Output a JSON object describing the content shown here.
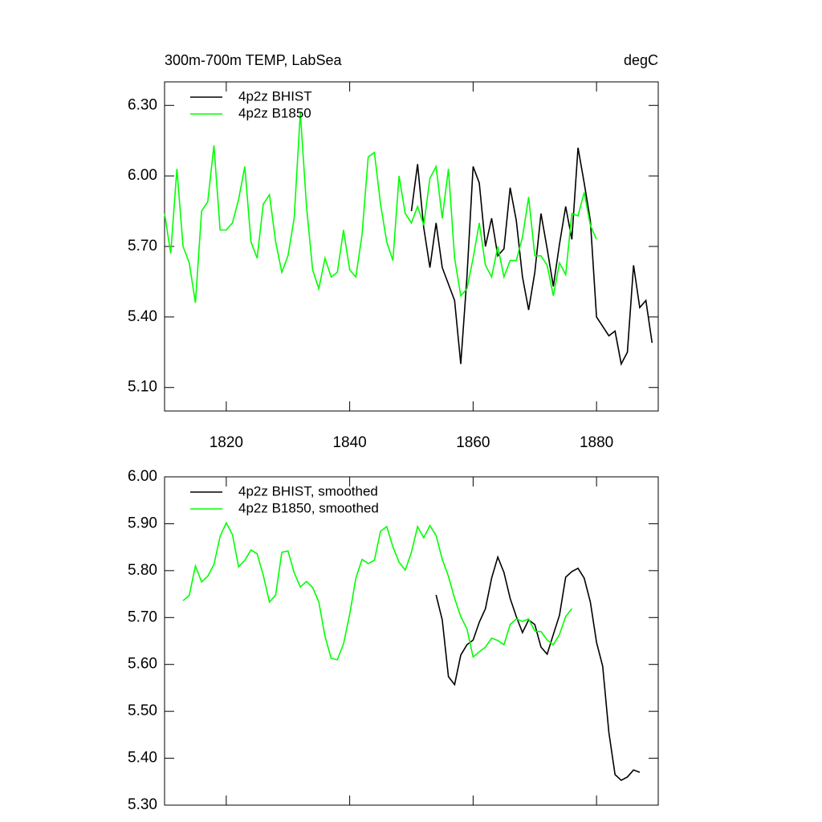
{
  "chart_data": [
    {
      "type": "line",
      "title": "300m-700m TEMP, LabSea",
      "subtitle": "degC",
      "xlim": [
        1810,
        1890
      ],
      "xticks": [
        1820,
        1840,
        1860,
        1880
      ],
      "ylim": [
        5.0,
        6.4
      ],
      "yticks": [
        {
          "value": 5.1,
          "label": "5.10"
        },
        {
          "value": 5.4,
          "label": "5.40"
        },
        {
          "value": 5.7,
          "label": "5.70"
        },
        {
          "value": 6.0,
          "label": "6.00"
        },
        {
          "value": 6.3,
          "label": "6.30"
        }
      ],
      "series": [
        {
          "name": "4p2z BHIST",
          "color": "#000000",
          "x": [
            1850,
            1851,
            1852,
            1853,
            1854,
            1855,
            1856,
            1857,
            1858,
            1859,
            1860,
            1861,
            1862,
            1863,
            1864,
            1865,
            1866,
            1867,
            1868,
            1869,
            1870,
            1871,
            1872,
            1873,
            1874,
            1875,
            1876,
            1877,
            1878,
            1879,
            1880,
            1881,
            1882,
            1883,
            1884,
            1885,
            1886,
            1887,
            1888,
            1889
          ],
          "values": [
            5.85,
            6.05,
            5.78,
            5.61,
            5.8,
            5.61,
            5.54,
            5.47,
            5.2,
            5.57,
            6.04,
            5.97,
            5.7,
            5.82,
            5.66,
            5.69,
            5.95,
            5.81,
            5.57,
            5.43,
            5.59,
            5.84,
            5.69,
            5.53,
            5.71,
            5.87,
            5.73,
            6.12,
            5.97,
            5.81,
            5.4,
            5.36,
            5.32,
            5.34,
            5.2,
            5.25,
            5.62,
            5.44,
            5.47,
            5.29
          ]
        },
        {
          "name": "4p2z B1850",
          "color": "#00ff00",
          "x": [
            1810,
            1811,
            1812,
            1813,
            1814,
            1815,
            1816,
            1817,
            1818,
            1819,
            1820,
            1821,
            1822,
            1823,
            1824,
            1825,
            1826,
            1827,
            1828,
            1829,
            1830,
            1831,
            1832,
            1833,
            1834,
            1835,
            1836,
            1837,
            1838,
            1839,
            1840,
            1841,
            1842,
            1843,
            1844,
            1845,
            1846,
            1847,
            1848,
            1849,
            1850,
            1851,
            1852,
            1853,
            1854,
            1855,
            1856,
            1857,
            1858,
            1859,
            1860,
            1861,
            1862,
            1863,
            1864,
            1865,
            1866,
            1867,
            1868,
            1869,
            1870,
            1871,
            1872,
            1873,
            1874,
            1875,
            1876,
            1877,
            1878,
            1879,
            1880
          ],
          "values": [
            5.84,
            5.67,
            6.03,
            5.7,
            5.63,
            5.46,
            5.85,
            5.89,
            6.13,
            5.77,
            5.77,
            5.8,
            5.9,
            6.04,
            5.72,
            5.65,
            5.88,
            5.92,
            5.72,
            5.59,
            5.66,
            5.82,
            6.27,
            5.87,
            5.6,
            5.52,
            5.65,
            5.57,
            5.59,
            5.77,
            5.6,
            5.57,
            5.75,
            6.08,
            6.1,
            5.88,
            5.72,
            5.64,
            6.0,
            5.84,
            5.8,
            5.87,
            5.79,
            5.99,
            6.04,
            5.82,
            6.03,
            5.65,
            5.49,
            5.52,
            5.65,
            5.8,
            5.62,
            5.57,
            5.7,
            5.57,
            5.64,
            5.64,
            5.74,
            5.91,
            5.66,
            5.66,
            5.62,
            5.49,
            5.63,
            5.58,
            5.84,
            5.83,
            5.93,
            5.79,
            5.73
          ]
        }
      ]
    },
    {
      "type": "line",
      "xlim": [
        1810,
        1890
      ],
      "xticks": [
        1820,
        1840,
        1860,
        1880
      ],
      "ylim": [
        5.3,
        6.0
      ],
      "yticks": [
        {
          "value": 5.3,
          "label": "5.30"
        },
        {
          "value": 5.4,
          "label": "5.40"
        },
        {
          "value": 5.5,
          "label": "5.50"
        },
        {
          "value": 5.6,
          "label": "5.60"
        },
        {
          "value": 5.7,
          "label": "5.70"
        },
        {
          "value": 5.8,
          "label": "5.80"
        },
        {
          "value": 5.9,
          "label": "5.90"
        },
        {
          "value": 6.0,
          "label": "6.00"
        }
      ],
      "series": [
        {
          "name": "4p2z BHIST, smoothed",
          "color": "#000000",
          "x": [
            1854,
            1855,
            1856,
            1857,
            1858,
            1859,
            1860,
            1861,
            1862,
            1863,
            1864,
            1865,
            1866,
            1867,
            1868,
            1869,
            1870,
            1871,
            1872,
            1873,
            1874,
            1875,
            1876,
            1877,
            1878,
            1879,
            1880,
            1881,
            1882,
            1883,
            1884,
            1885,
            1886,
            1887
          ],
          "values": [
            5.748,
            5.695,
            5.574,
            5.557,
            5.62,
            5.642,
            5.652,
            5.69,
            5.719,
            5.784,
            5.829,
            5.796,
            5.741,
            5.702,
            5.668,
            5.695,
            5.685,
            5.637,
            5.622,
            5.664,
            5.705,
            5.786,
            5.798,
            5.805,
            5.784,
            5.733,
            5.647,
            5.596,
            5.455,
            5.365,
            5.353,
            5.36,
            5.375,
            5.37
          ]
        },
        {
          "name": "4p2z B1850, smoothed",
          "color": "#00ff00",
          "x": [
            1813,
            1814,
            1815,
            1816,
            1817,
            1818,
            1819,
            1820,
            1821,
            1822,
            1823,
            1824,
            1825,
            1826,
            1827,
            1828,
            1829,
            1830,
            1831,
            1832,
            1833,
            1834,
            1835,
            1836,
            1837,
            1838,
            1839,
            1840,
            1841,
            1842,
            1843,
            1844,
            1845,
            1846,
            1847,
            1848,
            1849,
            1850,
            1851,
            1852,
            1853,
            1854,
            1855,
            1856,
            1857,
            1858,
            1859,
            1860,
            1861,
            1862,
            1863,
            1864,
            1865,
            1866,
            1867,
            1868,
            1869,
            1870,
            1871,
            1872,
            1873,
            1874,
            1875,
            1876
          ],
          "values": [
            5.736,
            5.747,
            5.81,
            5.776,
            5.788,
            5.813,
            5.873,
            5.902,
            5.877,
            5.808,
            5.822,
            5.844,
            5.836,
            5.79,
            5.733,
            5.748,
            5.839,
            5.842,
            5.796,
            5.765,
            5.777,
            5.764,
            5.733,
            5.66,
            5.613,
            5.61,
            5.644,
            5.707,
            5.784,
            5.824,
            5.815,
            5.822,
            5.884,
            5.894,
            5.851,
            5.818,
            5.801,
            5.839,
            5.894,
            5.87,
            5.896,
            5.875,
            5.824,
            5.788,
            5.741,
            5.702,
            5.676,
            5.616,
            5.627,
            5.637,
            5.656,
            5.651,
            5.642,
            5.685,
            5.697,
            5.692,
            5.697,
            5.671,
            5.67,
            5.652,
            5.642,
            5.664,
            5.702,
            5.719
          ]
        }
      ]
    }
  ]
}
